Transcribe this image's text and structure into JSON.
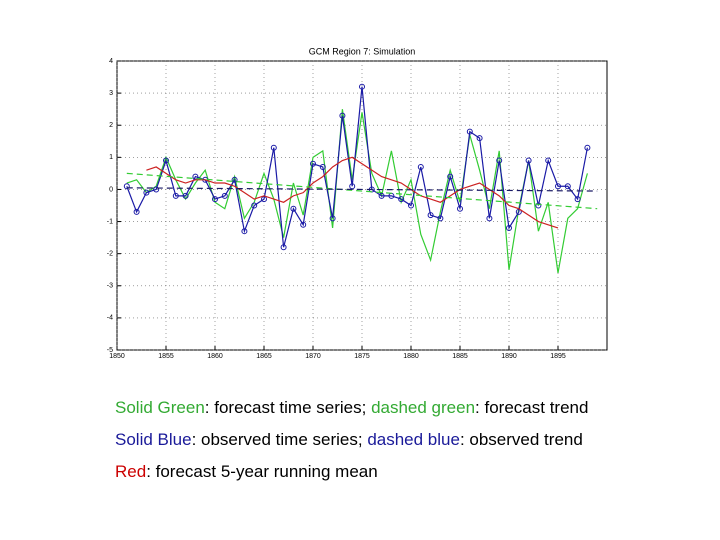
{
  "chart_data": {
    "type": "line",
    "title": "GCM Region 7: Simulation",
    "x": [
      1851,
      1852,
      1853,
      1854,
      1855,
      1856,
      1857,
      1858,
      1859,
      1860,
      1861,
      1862,
      1863,
      1864,
      1865,
      1866,
      1867,
      1868,
      1869,
      1870,
      1871,
      1872,
      1873,
      1874,
      1875,
      1876,
      1877,
      1878,
      1879,
      1880,
      1881,
      1882,
      1883,
      1884,
      1885,
      1886,
      1887,
      1888,
      1889,
      1890,
      1891,
      1892,
      1893,
      1894,
      1895,
      1896,
      1897,
      1898
    ],
    "series": [
      {
        "color": "#33cc33",
        "style": "solid",
        "markers": false,
        "values": [
          0.2,
          0.3,
          -0.1,
          0.1,
          1.0,
          0.3,
          -0.3,
          0.2,
          0.6,
          -0.4,
          -0.6,
          0.4,
          -0.9,
          -0.4,
          0.5,
          -0.3,
          -1.5,
          0.2,
          -0.8,
          1.0,
          1.2,
          -1.2,
          2.5,
          0.3,
          2.4,
          0.5,
          -0.2,
          1.2,
          -0.4,
          0.3,
          -1.4,
          -2.2,
          -0.7,
          0.6,
          -0.4,
          1.7,
          0.6,
          -0.6,
          1.2,
          -2.5,
          -0.6,
          0.9,
          -1.3,
          -0.4,
          -2.6,
          -0.9,
          -0.6,
          0.5
        ]
      },
      {
        "color": "#1a1aa6",
        "style": "solid",
        "markers": true,
        "values": [
          0.1,
          -0.7,
          -0.1,
          0.0,
          0.9,
          -0.2,
          -0.2,
          0.4,
          0.3,
          -0.3,
          -0.2,
          0.3,
          -1.3,
          -0.5,
          -0.3,
          1.3,
          -1.8,
          -0.6,
          -1.1,
          0.8,
          0.7,
          -0.9,
          2.3,
          0.1,
          3.2,
          0.0,
          -0.2,
          -0.2,
          -0.3,
          -0.5,
          0.7,
          -0.8,
          -0.9,
          0.4,
          -0.6,
          1.8,
          1.6,
          -0.9,
          0.9,
          -1.2,
          -0.7,
          0.9,
          -0.5,
          0.9,
          0.1,
          0.1,
          -0.3,
          1.3
        ]
      },
      {
        "color": "#cc2222",
        "style": "solid",
        "markers": false,
        "values": [
          null,
          null,
          0.6,
          0.7,
          0.5,
          0.3,
          0.2,
          0.3,
          0.3,
          0.2,
          0.2,
          0.1,
          -0.1,
          -0.3,
          -0.2,
          -0.3,
          -0.4,
          -0.2,
          -0.1,
          0.2,
          0.4,
          0.7,
          0.9,
          1.0,
          0.8,
          0.6,
          0.4,
          0.3,
          0.2,
          0.0,
          -0.2,
          -0.3,
          -0.4,
          -0.2,
          0.0,
          0.1,
          0.2,
          0.0,
          -0.2,
          -0.5,
          -0.6,
          -0.8,
          -1.0,
          -1.1,
          -1.2,
          null,
          null,
          null
        ]
      },
      {
        "color": "#33cc33",
        "style": "dashed",
        "markers": false,
        "x": [
          1851,
          1899
        ],
        "values": [
          0.5,
          -0.6
        ]
      },
      {
        "color": "#1a1a66",
        "style": "dashed",
        "markers": false,
        "x": [
          1851,
          1899
        ],
        "values": [
          0.05,
          -0.05
        ]
      }
    ],
    "xlim": [
      1850,
      1900
    ],
    "xticks": [
      1850,
      1855,
      1860,
      1865,
      1870,
      1875,
      1880,
      1885,
      1890,
      1895
    ],
    "ylim": [
      -5,
      4
    ],
    "yticks": [
      -5,
      -4,
      -3,
      -2,
      -1,
      0,
      1,
      2,
      3,
      4
    ],
    "grid": true,
    "captions": [
      [
        {
          "text": "Solid Green",
          "color": "#33aa33"
        },
        {
          "text": ": forecast time series; ",
          "color": "#000000"
        },
        {
          "text": "dashed green",
          "color": "#33aa33"
        },
        {
          "text": ": forecast trend",
          "color": "#000000"
        }
      ],
      [
        {
          "text": "Solid Blue",
          "color": "#1a1a99"
        },
        {
          "text": ": observed time series; ",
          "color": "#000000"
        },
        {
          "text": "dashed blue",
          "color": "#1a1a99"
        },
        {
          "text": ": observed trend",
          "color": "#000000"
        }
      ],
      [
        {
          "text": "Red",
          "color": "#cc0000"
        },
        {
          "text": ": forecast 5-year running mean",
          "color": "#000000"
        }
      ]
    ]
  }
}
